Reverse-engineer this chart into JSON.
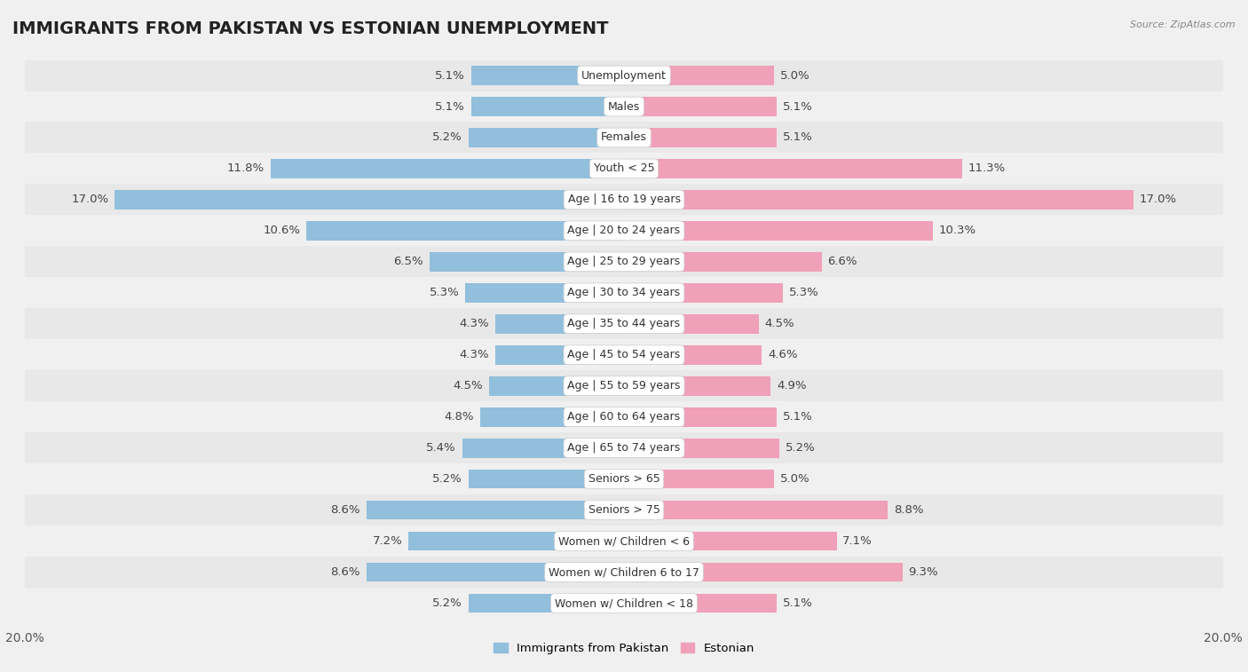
{
  "title": "IMMIGRANTS FROM PAKISTAN VS ESTONIAN UNEMPLOYMENT",
  "source": "Source: ZipAtlas.com",
  "categories": [
    "Unemployment",
    "Males",
    "Females",
    "Youth < 25",
    "Age | 16 to 19 years",
    "Age | 20 to 24 years",
    "Age | 25 to 29 years",
    "Age | 30 to 34 years",
    "Age | 35 to 44 years",
    "Age | 45 to 54 years",
    "Age | 55 to 59 years",
    "Age | 60 to 64 years",
    "Age | 65 to 74 years",
    "Seniors > 65",
    "Seniors > 75",
    "Women w/ Children < 6",
    "Women w/ Children 6 to 17",
    "Women w/ Children < 18"
  ],
  "pakistan_values": [
    5.1,
    5.1,
    5.2,
    11.8,
    17.0,
    10.6,
    6.5,
    5.3,
    4.3,
    4.3,
    4.5,
    4.8,
    5.4,
    5.2,
    8.6,
    7.2,
    8.6,
    5.2
  ],
  "estonian_values": [
    5.0,
    5.1,
    5.1,
    11.3,
    17.0,
    10.3,
    6.6,
    5.3,
    4.5,
    4.6,
    4.9,
    5.1,
    5.2,
    5.0,
    8.8,
    7.1,
    9.3,
    5.1
  ],
  "pakistan_color": "#92bfdc",
  "estonian_color": "#f0a0b8",
  "pakistan_label": "Immigrants from Pakistan",
  "estonian_label": "Estonian",
  "x_max": 20.0,
  "row_color_odd": "#e8e8e8",
  "row_color_even": "#f5f5f5",
  "bar_bg_color": "#e0e0e0",
  "title_fontsize": 14,
  "label_fontsize": 9.5
}
